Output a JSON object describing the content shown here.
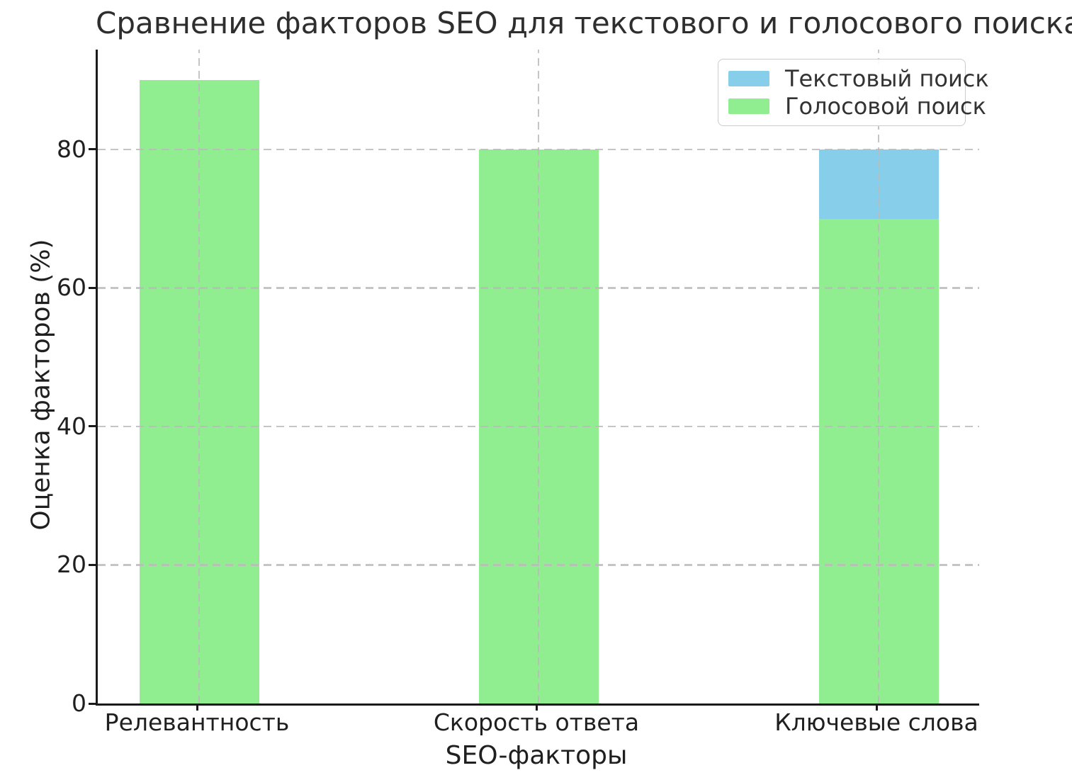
{
  "title": "Сравнение факторов SEO для текстового и голосового поиска",
  "legend": {
    "items": [
      {
        "label": "Текстовый поиск",
        "color": "#87CEEB"
      },
      {
        "label": "Голосовой поиск",
        "color": "#90EE90"
      }
    ]
  },
  "chart_data": {
    "type": "bar",
    "title": "Сравнение факторов SEO для текстового и голосового поиска",
    "categories": [
      "Релевантность",
      "Скорость ответа",
      "Ключевые слова"
    ],
    "series": [
      {
        "name": "Текстовый поиск",
        "color": "#87CEEB",
        "values": [
          null,
          null,
          80
        ],
        "note": "drawn behind voice-search bars; visible only on 'Ключевые слова' as segment 70–80"
      },
      {
        "name": "Голосовой поиск",
        "color": "#90EE90",
        "values": [
          90,
          80,
          70
        ]
      }
    ],
    "bar_mode": "overlaid",
    "xlabel": "SEO-факторы",
    "ylabel": "Оценка факторов (%)",
    "ylim": [
      0,
      94.4
    ],
    "yticks": [
      0,
      20,
      40,
      60,
      80
    ],
    "grid": true,
    "grid_style": "dashed, drawn above bars",
    "legend_position": "upper right"
  }
}
